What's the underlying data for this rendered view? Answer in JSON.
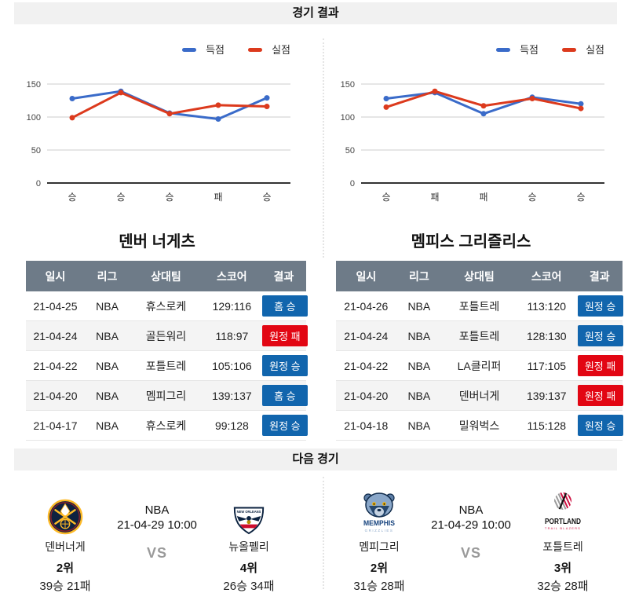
{
  "headers": {
    "results": "경기 결과",
    "next": "다음 경기"
  },
  "colors": {
    "scored_line": "#3a6bc9",
    "allowed_line": "#dc3a1d",
    "win_badge": "#1165ad",
    "lose_badge": "#e20613",
    "table_header_bg": "#6e7b88",
    "section_bar_bg": "#f1f1f1"
  },
  "chart_data": [
    {
      "type": "line",
      "team": "덴버 너게츠",
      "x": [
        "승",
        "승",
        "승",
        "패",
        "승"
      ],
      "series": [
        {
          "name": "득점",
          "color": "#3a6bc9",
          "values": [
            128,
            139,
            106,
            97,
            129
          ]
        },
        {
          "name": "실점",
          "color": "#dc3a1d",
          "values": [
            99,
            137,
            105,
            118,
            116
          ]
        }
      ],
      "ylim": [
        0,
        150
      ],
      "yticks": [
        0,
        50,
        100,
        150
      ],
      "grid": true,
      "legend_position": "top-right"
    },
    {
      "type": "line",
      "team": "멤피스 그리즐리스",
      "x": [
        "승",
        "패",
        "패",
        "승",
        "승"
      ],
      "series": [
        {
          "name": "득점",
          "color": "#3a6bc9",
          "values": [
            128,
            137,
            105,
            130,
            120
          ]
        },
        {
          "name": "실점",
          "color": "#dc3a1d",
          "values": [
            115,
            139,
            117,
            128,
            113
          ]
        }
      ],
      "ylim": [
        0,
        150
      ],
      "yticks": [
        0,
        50,
        100,
        150
      ],
      "grid": true,
      "legend_position": "top-right"
    }
  ],
  "tables": [
    {
      "title": "덴버 너게츠",
      "columns": [
        "일시",
        "리그",
        "상대팀",
        "스코어",
        "결과"
      ],
      "rows": [
        {
          "date": "21-04-25",
          "league": "NBA",
          "opponent": "휴스로케",
          "score": "129:116",
          "result": "홈 승",
          "result_type": "win"
        },
        {
          "date": "21-04-24",
          "league": "NBA",
          "opponent": "골든워리",
          "score": "118:97",
          "result": "원정 패",
          "result_type": "lose"
        },
        {
          "date": "21-04-22",
          "league": "NBA",
          "opponent": "포틀트레",
          "score": "105:106",
          "result": "원정 승",
          "result_type": "win"
        },
        {
          "date": "21-04-20",
          "league": "NBA",
          "opponent": "멤피그리",
          "score": "139:137",
          "result": "홈 승",
          "result_type": "win"
        },
        {
          "date": "21-04-17",
          "league": "NBA",
          "opponent": "휴스로케",
          "score": "99:128",
          "result": "원정 승",
          "result_type": "win"
        }
      ]
    },
    {
      "title": "멤피스 그리즐리스",
      "columns": [
        "일시",
        "리그",
        "상대팀",
        "스코어",
        "결과"
      ],
      "rows": [
        {
          "date": "21-04-26",
          "league": "NBA",
          "opponent": "포틀트레",
          "score": "113:120",
          "result": "원정 승",
          "result_type": "win"
        },
        {
          "date": "21-04-24",
          "league": "NBA",
          "opponent": "포틀트레",
          "score": "128:130",
          "result": "원정 승",
          "result_type": "win"
        },
        {
          "date": "21-04-22",
          "league": "NBA",
          "opponent": "LA클리퍼",
          "score": "117:105",
          "result": "원정 패",
          "result_type": "lose"
        },
        {
          "date": "21-04-20",
          "league": "NBA",
          "opponent": "덴버너게",
          "score": "139:137",
          "result": "원정 패",
          "result_type": "lose"
        },
        {
          "date": "21-04-18",
          "league": "NBA",
          "opponent": "밀워벅스",
          "score": "115:128",
          "result": "원정 승",
          "result_type": "win"
        }
      ]
    }
  ],
  "next": {
    "matches": [
      {
        "league": "NBA",
        "datetime": "21-04-29 10:00",
        "vs_label": "VS",
        "left": {
          "name": "덴버너게",
          "rank": "2위",
          "record": "39승 21패",
          "logo": "denver-nuggets-logo"
        },
        "right": {
          "name": "뉴올펠리",
          "rank": "4위",
          "record": "26승 34패",
          "logo": "new-orleans-pelicans-logo"
        }
      },
      {
        "league": "NBA",
        "datetime": "21-04-29 10:00",
        "vs_label": "VS",
        "left": {
          "name": "멤피그리",
          "rank": "2위",
          "record": "31승 28패",
          "logo": "memphis-grizzlies-logo"
        },
        "right": {
          "name": "포틀트레",
          "rank": "3위",
          "record": "32승 28패",
          "logo": "portland-trail-blazers-logo"
        }
      }
    ]
  }
}
